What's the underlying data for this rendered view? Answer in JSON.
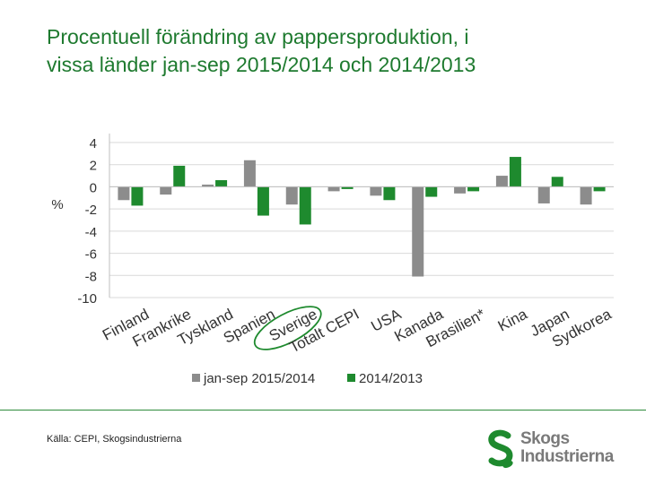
{
  "title_line1": "Procentuell förändring av pappersproduktion, i",
  "title_line2": "vissa länder jan-sep 2015/2014 och 2014/2013",
  "source": "Källa: CEPI, Skogsindustrierna",
  "logo": {
    "line1": "Skogs",
    "line2": "Industrierna",
    "icon": "s-leaf-icon",
    "color": "#7a7a7a",
    "accent": "#1e8a2e"
  },
  "colors": {
    "series1": "#8c8c8c",
    "series2": "#1e8a2e",
    "title": "#1e7a2f",
    "highlight": "#1e8a2e"
  },
  "chart_data": {
    "type": "bar",
    "title": "",
    "ylabel": "%",
    "xlabel": "",
    "ylim": [
      -10,
      4
    ],
    "yticks": [
      4,
      2,
      0,
      -2,
      -4,
      -6,
      -8,
      -10
    ],
    "grid": true,
    "legend_position": "bottom",
    "highlight_category": "Sverige",
    "categories": [
      "Finland",
      "Frankrike",
      "Tyskland",
      "Spanien",
      "Sverige",
      "Totalt CEPI",
      "USA",
      "Kanada",
      "Brasilien*",
      "Kina",
      "Japan",
      "Sydkorea"
    ],
    "series": [
      {
        "name": "jan-sep 2015/2014",
        "values": [
          -1.2,
          -0.7,
          0.2,
          2.4,
          -1.6,
          -0.4,
          -0.8,
          -8.1,
          -0.6,
          1.0,
          -1.5,
          -1.6
        ]
      },
      {
        "name": "2014/2013",
        "values": [
          -1.7,
          1.9,
          0.6,
          -2.6,
          -3.4,
          -0.2,
          -1.2,
          -0.9,
          -0.4,
          2.7,
          0.9,
          -0.4
        ]
      }
    ]
  }
}
